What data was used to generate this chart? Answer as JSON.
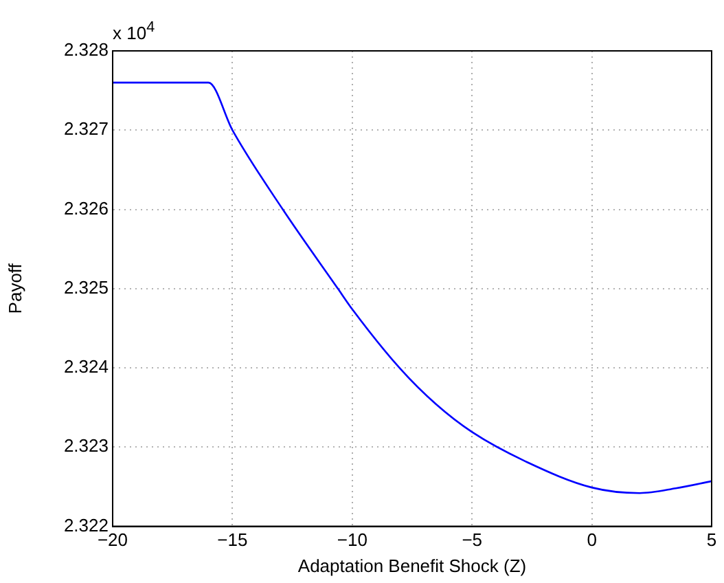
{
  "chart_data": {
    "type": "line",
    "xlabel": "Adaptation Benefit Shock (Z)",
    "ylabel": "Payoff",
    "annotations": [
      "x 10$^{4}$"
    ],
    "x": [
      -20,
      -16,
      -15,
      -12.9,
      -10.6,
      -10,
      -8,
      -6.5,
      -5,
      -2.7,
      0,
      2,
      3.5,
      5
    ],
    "series": [
      {
        "color": "#0000ff",
        "values": [
          2.3276,
          2.3276,
          2.327,
          2.326,
          2.325,
          2.32474,
          2.32399,
          2.32354,
          2.32319,
          2.32281,
          2.32249,
          2.32242,
          2.32248,
          2.32257
        ]
      }
    ],
    "xlim": [
      -20,
      5
    ],
    "xticks": [
      -20,
      -15,
      -10,
      -5,
      0,
      5
    ],
    "ylim": [
      2.322,
      2.328
    ],
    "yticks": [
      2.322,
      2.323,
      2.324,
      2.325,
      2.326,
      2.327,
      2.328
    ],
    "grid": true,
    "legend": false,
    "marker": "none",
    "line_style": "solid"
  }
}
